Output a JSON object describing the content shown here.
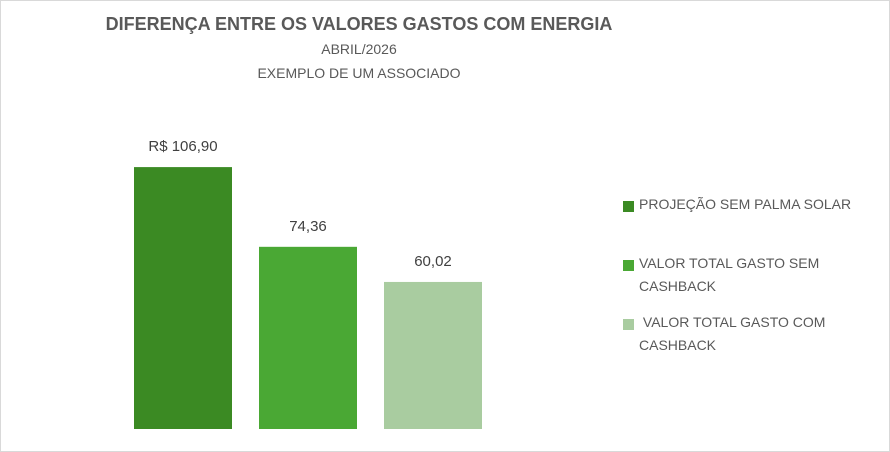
{
  "chart_data": {
    "type": "bar",
    "title": "DIFERENÇA ENTRE OS VALORES GASTOS COM ENERGIA",
    "subtitle_1": "ABRIL/2026",
    "subtitle_2": "EXEMPLO DE UM ASSOCIADO",
    "ylim": [
      0,
      120
    ],
    "grid": false,
    "legend_position": "right",
    "series": [
      {
        "name": "PROJEÇÃO SEM PALMA SOLAR",
        "value": 106.9,
        "label": "R$ 106,90",
        "color": "#3b8a23"
      },
      {
        "name": "VALOR TOTAL GASTO SEM CASHBACK",
        "value": 74.36,
        "label": "74,36",
        "color": "#4aa834"
      },
      {
        "name": " VALOR TOTAL GASTO COM CASHBACK",
        "value": 60.02,
        "label": "60,02",
        "color": "#a9cca0"
      }
    ]
  }
}
